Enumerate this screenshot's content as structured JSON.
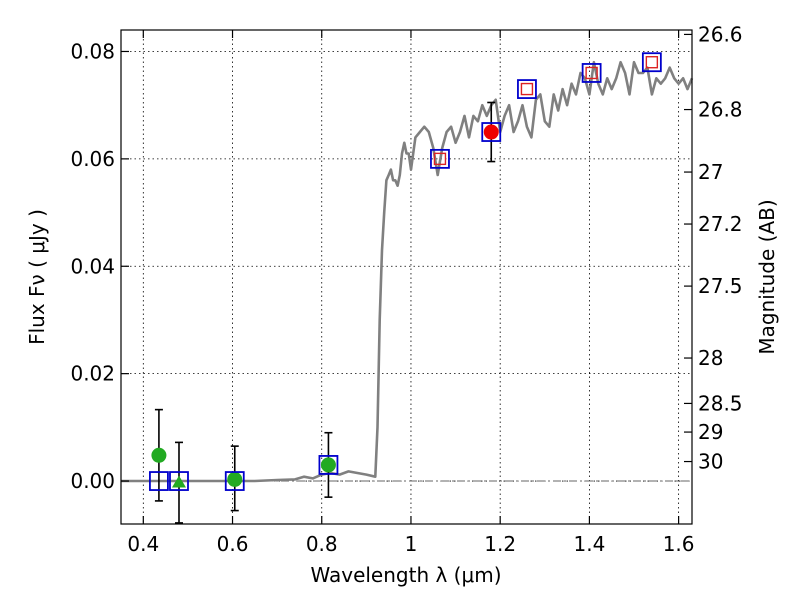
{
  "chart_data": {
    "type": "scatter",
    "xlabel": "Wavelength  λ (μm)",
    "ylabel": "Flux  Fν  ( μJy )",
    "y2label": "Magnitude (AB)",
    "xlim": [
      0.35,
      1.63
    ],
    "ylim": [
      -0.008,
      0.084
    ],
    "grid": true,
    "x_ticks": [
      {
        "value": 0.4,
        "label": "0.4"
      },
      {
        "value": 0.6,
        "label": "0.6"
      },
      {
        "value": 0.8,
        "label": "0.8"
      },
      {
        "value": 1.0,
        "label": "1"
      },
      {
        "value": 1.2,
        "label": "1.2"
      },
      {
        "value": 1.4,
        "label": "1.4"
      },
      {
        "value": 1.6,
        "label": "1.6"
      }
    ],
    "y_ticks": [
      {
        "value": 0.0,
        "label": "0.00"
      },
      {
        "value": 0.02,
        "label": "0.02"
      },
      {
        "value": 0.04,
        "label": "0.04"
      },
      {
        "value": 0.06,
        "label": "0.06"
      },
      {
        "value": 0.08,
        "label": "0.08"
      }
    ],
    "mag_ticks": [
      {
        "label": "26.6",
        "mag": 26.6
      },
      {
        "label": "26.8",
        "mag": 26.8
      },
      {
        "label": "27",
        "mag": 27.0
      },
      {
        "label": "27.2",
        "mag": 27.2
      },
      {
        "label": "27.5",
        "mag": 27.5
      },
      {
        "label": "28",
        "mag": 28.0
      },
      {
        "label": "28.5",
        "mag": 28.5
      },
      {
        "label": "29",
        "mag": 29.0
      },
      {
        "label": "30",
        "mag": 30.0
      }
    ],
    "zero_line": {
      "y": 0.0,
      "style": "dash-dot",
      "color": "#666666"
    },
    "model_spectrum": {
      "color": "#808080",
      "x": [
        0.35,
        0.4,
        0.45,
        0.5,
        0.55,
        0.6,
        0.65,
        0.7,
        0.74,
        0.76,
        0.78,
        0.8,
        0.82,
        0.84,
        0.86,
        0.88,
        0.9,
        0.92,
        0.925,
        0.93,
        0.935,
        0.94,
        0.945,
        0.95,
        0.955,
        0.96,
        0.965,
        0.97,
        0.975,
        0.98,
        0.985,
        0.99,
        0.995,
        1.0,
        1.005,
        1.01,
        1.02,
        1.03,
        1.04,
        1.05,
        1.06,
        1.07,
        1.08,
        1.09,
        1.1,
        1.11,
        1.12,
        1.13,
        1.14,
        1.15,
        1.16,
        1.17,
        1.18,
        1.19,
        1.2,
        1.21,
        1.22,
        1.23,
        1.24,
        1.25,
        1.26,
        1.27,
        1.28,
        1.29,
        1.3,
        1.31,
        1.32,
        1.33,
        1.34,
        1.35,
        1.36,
        1.37,
        1.38,
        1.39,
        1.4,
        1.41,
        1.42,
        1.43,
        1.44,
        1.45,
        1.46,
        1.47,
        1.48,
        1.49,
        1.5,
        1.51,
        1.52,
        1.53,
        1.54,
        1.55,
        1.56,
        1.57,
        1.58,
        1.59,
        1.6,
        1.61,
        1.62,
        1.63
      ],
      "y": [
        0.0,
        0.0,
        0.0,
        0.0,
        0.0,
        0.0,
        0.0,
        0.0002,
        0.0003,
        0.0008,
        0.0005,
        0.0012,
        0.0015,
        0.0012,
        0.0018,
        0.0015,
        0.0012,
        0.0008,
        0.01,
        0.03,
        0.043,
        0.05,
        0.056,
        0.057,
        0.058,
        0.056,
        0.056,
        0.055,
        0.057,
        0.061,
        0.063,
        0.061,
        0.061,
        0.058,
        0.061,
        0.064,
        0.065,
        0.066,
        0.065,
        0.062,
        0.057,
        0.062,
        0.065,
        0.066,
        0.063,
        0.065,
        0.068,
        0.064,
        0.068,
        0.067,
        0.07,
        0.068,
        0.07,
        0.071,
        0.065,
        0.068,
        0.07,
        0.065,
        0.067,
        0.07,
        0.066,
        0.064,
        0.071,
        0.072,
        0.067,
        0.066,
        0.072,
        0.069,
        0.073,
        0.07,
        0.074,
        0.072,
        0.076,
        0.075,
        0.072,
        0.078,
        0.074,
        0.072,
        0.075,
        0.073,
        0.075,
        0.078,
        0.076,
        0.072,
        0.078,
        0.076,
        0.076,
        0.077,
        0.072,
        0.075,
        0.074,
        0.075,
        0.077,
        0.075,
        0.074,
        0.075,
        0.073,
        0.075
      ]
    },
    "photometry_open_squares": {
      "edge_color": "#0000cc",
      "x": [
        0.435,
        0.48,
        0.605,
        0.815,
        1.065,
        1.18,
        1.26,
        1.405,
        1.54
      ],
      "y": [
        0.0,
        0.0,
        0.0,
        0.003,
        0.06,
        0.065,
        0.073,
        0.076,
        0.078
      ]
    },
    "model_points_red_squares": {
      "edge_color": "#dd2222",
      "x": [
        1.065,
        1.26,
        1.405,
        1.54
      ],
      "y": [
        0.06,
        0.073,
        0.076,
        0.078
      ]
    },
    "measured_points": [
      {
        "x": 0.435,
        "y": 0.0048,
        "yerr_low": 0.0085,
        "yerr_high": 0.0085,
        "marker": "circle",
        "color": "#22aa22"
      },
      {
        "x": 0.48,
        "y": -0.0003,
        "yerr_low": 0.0075,
        "yerr_high": 0.0075,
        "marker": "triangle",
        "color": "#22aa22"
      },
      {
        "x": 0.605,
        "y": 0.0003,
        "yerr_low": 0.0058,
        "yerr_high": 0.0062,
        "marker": "circle",
        "color": "#22aa22"
      },
      {
        "x": 0.815,
        "y": 0.003,
        "yerr_low": 0.006,
        "yerr_high": 0.006,
        "marker": "circle",
        "color": "#22aa22"
      },
      {
        "x": 1.18,
        "y": 0.065,
        "yerr_low": 0.0055,
        "yerr_high": 0.0055,
        "marker": "circle",
        "color": "#ee0000"
      }
    ]
  }
}
